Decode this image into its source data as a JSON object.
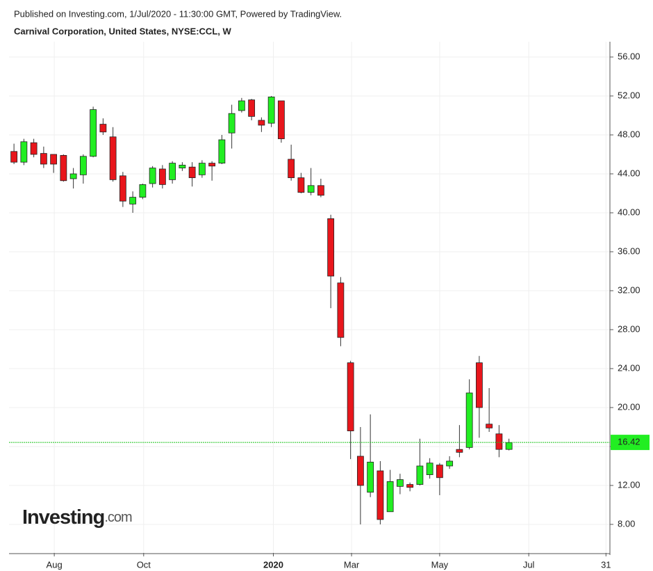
{
  "chart_data": {
    "type": "candlestick",
    "header": "Published on Investing.com, 1/Jul/2020 - 11:30:00 GMT, Powered by TradingView.",
    "title": "Carnival Corporation, United States, NYSE:CCL, W",
    "watermark": [
      "Investing",
      ".com"
    ],
    "up_color": "#22ee22",
    "down_color": "#e8161c",
    "grid": true,
    "xlim": [
      -0.5,
      60.2
    ],
    "xticks": [
      {
        "value": 4.07,
        "label": "Aug"
      },
      {
        "value": 13.1,
        "label": "Oct"
      },
      {
        "value": 26.2,
        "label": "2020"
      },
      {
        "value": 34.1,
        "label": "Mar"
      },
      {
        "value": 43.0,
        "label": "May"
      },
      {
        "value": 52.0,
        "label": "Jul"
      },
      {
        "value": 59.8,
        "label": "31"
      }
    ],
    "ylim": [
      5.07,
      57.57
    ],
    "yticks": [
      {
        "value": 8,
        "label": "8.00"
      },
      {
        "value": 12,
        "label": "12.00"
      },
      {
        "value": 16,
        "label": "16.00"
      },
      {
        "value": 20,
        "label": "20.00"
      },
      {
        "value": 24,
        "label": "24.00"
      },
      {
        "value": 28,
        "label": "28.00"
      },
      {
        "value": 32,
        "label": "32.00"
      },
      {
        "value": 36,
        "label": "36.00"
      },
      {
        "value": 40,
        "label": "40.00"
      },
      {
        "value": 44,
        "label": "44.00"
      },
      {
        "value": 48,
        "label": "48.00"
      },
      {
        "value": 52,
        "label": "52.00"
      },
      {
        "value": 56,
        "label": "56.00"
      }
    ],
    "last_price": 16.42,
    "x": [
      0,
      1,
      2,
      3,
      4,
      5,
      6,
      7,
      8,
      9,
      10,
      11,
      12,
      13,
      14,
      15,
      16,
      17,
      18,
      19,
      20,
      21,
      22,
      23,
      24,
      25,
      26,
      27,
      28,
      29,
      30,
      31,
      32,
      33,
      34,
      35,
      36,
      37,
      38,
      39,
      40,
      41,
      42,
      43,
      44,
      45,
      46,
      47,
      48,
      49,
      50
    ],
    "open": [
      46.3,
      45.2,
      47.2,
      46.1,
      46.0,
      45.9,
      43.5,
      43.9,
      45.8,
      49.1,
      47.8,
      43.8,
      40.9,
      41.6,
      43.0,
      44.5,
      43.4,
      44.6,
      44.7,
      43.9,
      45.1,
      45.1,
      48.2,
      50.5,
      51.6,
      49.5,
      49.2,
      51.5,
      45.5,
      43.6,
      42.1,
      42.8,
      39.4,
      32.8,
      24.6,
      15.0,
      11.3,
      13.5,
      9.3,
      11.9,
      12.1,
      12.1,
      13.1,
      14.1,
      14.0,
      15.7,
      15.9,
      24.6,
      18.3,
      17.3,
      15.7
    ],
    "high": [
      47.1,
      47.6,
      47.6,
      46.8,
      46.0,
      46.0,
      44.6,
      46.0,
      50.9,
      49.7,
      48.8,
      44.2,
      42.2,
      43.0,
      44.8,
      44.9,
      45.3,
      45.2,
      45.2,
      45.4,
      45.3,
      48.0,
      51.1,
      51.8,
      51.7,
      49.8,
      52.0,
      51.5,
      47.0,
      44.1,
      44.6,
      43.5,
      39.8,
      33.4,
      24.8,
      18.0,
      19.3,
      14.5,
      13.6,
      13.2,
      12.3,
      16.8,
      14.8,
      14.3,
      15.0,
      18.2,
      22.9,
      25.3,
      22.0,
      18.2,
      16.8
    ],
    "low": [
      45.0,
      44.9,
      45.7,
      44.6,
      44.1,
      43.2,
      42.5,
      43.0,
      45.7,
      48.0,
      43.2,
      40.6,
      40.0,
      41.4,
      42.6,
      42.5,
      43.0,
      44.3,
      42.7,
      43.6,
      43.3,
      45.0,
      46.6,
      50.3,
      49.5,
      48.3,
      48.8,
      47.2,
      43.3,
      42.0,
      41.8,
      41.6,
      30.2,
      26.3,
      14.7,
      8.0,
      10.8,
      8.0,
      9.3,
      11.1,
      11.4,
      12.0,
      12.7,
      11.0,
      13.7,
      14.9,
      15.7,
      16.9,
      17.5,
      14.9,
      15.6
    ],
    "close": [
      45.2,
      47.3,
      46.0,
      45.0,
      45.0,
      43.3,
      44.0,
      45.8,
      50.6,
      48.3,
      43.4,
      41.2,
      41.6,
      42.9,
      44.6,
      42.9,
      45.1,
      44.9,
      43.6,
      45.1,
      44.8,
      47.5,
      50.2,
      51.5,
      49.9,
      49.0,
      51.9,
      47.6,
      43.6,
      42.1,
      42.8,
      41.8,
      33.5,
      27.2,
      17.6,
      12.0,
      14.4,
      8.5,
      12.4,
      12.6,
      11.8,
      14.0,
      14.3,
      12.8,
      14.5,
      15.4,
      21.5,
      20.0,
      17.9,
      15.7,
      16.4
    ]
  }
}
